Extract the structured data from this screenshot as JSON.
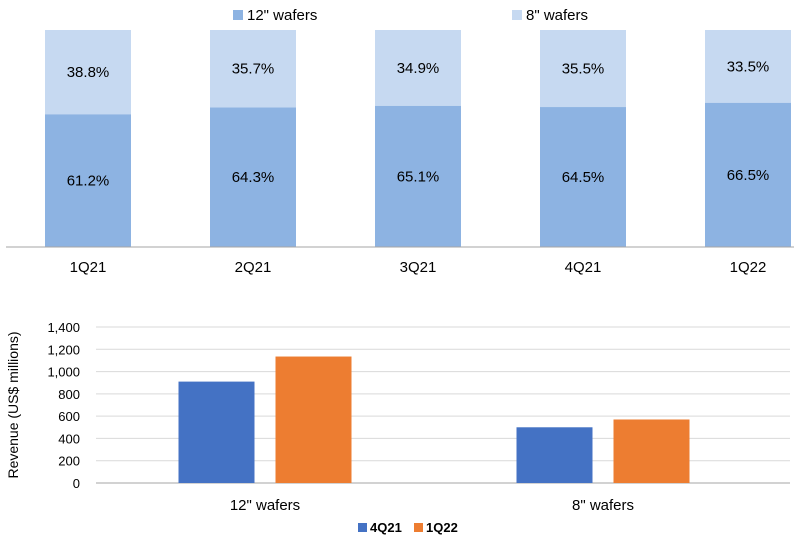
{
  "colors": {
    "wafer12": "#8db3e2",
    "wafer8": "#c6d9f1",
    "q4_21": "#4472c4",
    "q1_22": "#ed7d31",
    "axis": "#a6a6a6",
    "grid": "#d9d9d9"
  },
  "chart_data": [
    {
      "type": "bar",
      "stacked": true,
      "percent": true,
      "title": "",
      "categories": [
        "1Q21",
        "2Q21",
        "3Q21",
        "4Q21",
        "1Q22"
      ],
      "series": [
        {
          "name": "12\" wafers",
          "values": [
            61.2,
            64.3,
            65.1,
            64.5,
            66.5
          ],
          "labels": [
            "61.2%",
            "64.3%",
            "65.1%",
            "64.5%",
            "66.5%"
          ]
        },
        {
          "name": "8\" wafers",
          "values": [
            38.8,
            35.7,
            34.9,
            35.5,
            33.5
          ],
          "labels": [
            "38.8%",
            "35.7%",
            "34.9%",
            "35.5%",
            "33.5%"
          ]
        }
      ],
      "ylim": [
        0,
        100
      ],
      "legend": "top",
      "grid": false
    },
    {
      "type": "bar",
      "title": "",
      "categories": [
        "12\" wafers",
        "8\" wafers"
      ],
      "series": [
        {
          "name": "4Q21",
          "values": [
            910,
            500
          ]
        },
        {
          "name": "1Q22",
          "values": [
            1135,
            570
          ]
        }
      ],
      "ylabel": "Revenue (US$  millions)",
      "ylim": [
        0,
        1400
      ],
      "yticks": [
        "0",
        "200",
        "400",
        "600",
        "800",
        "1,000",
        "1,200",
        "1,400"
      ],
      "legend": "bottom",
      "grid": true
    }
  ]
}
